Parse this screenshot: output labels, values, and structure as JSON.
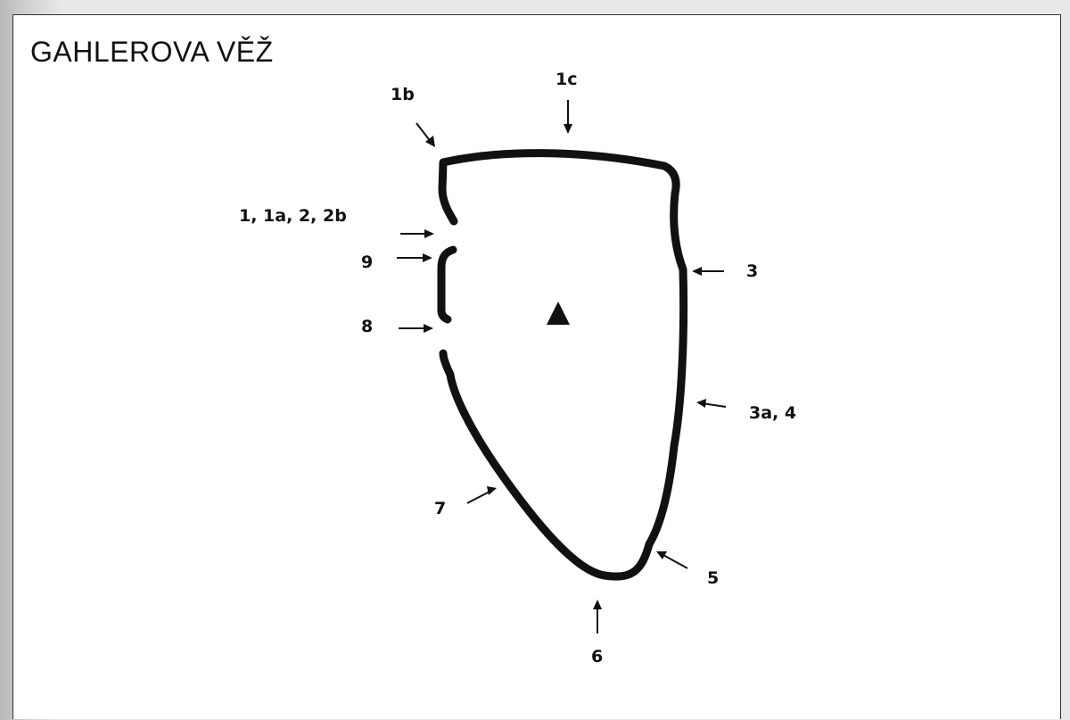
{
  "title": "GAHLEROVA VĚŽ",
  "labels": {
    "l1b": "1b",
    "l1c": "1c",
    "l_left_top": "1, 1a, 2, 2b",
    "l9": "9",
    "l8": "8",
    "l3": "3",
    "l3a4": "3a, 4",
    "l7": "7",
    "l5": "5",
    "l6": "6"
  },
  "colors": {
    "outline": "#111111",
    "panel": "#ffffff"
  },
  "icons": {
    "summit": "triangle-summit-icon"
  }
}
